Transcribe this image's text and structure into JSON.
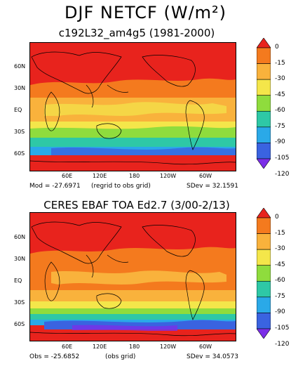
{
  "title": "DJF NETCF (W/m²)",
  "panels": [
    {
      "subtitle": "c192L32_am4g5 (1981-2000)",
      "stat_left": "Mod = -27.6971",
      "stat_mid": "(regrid to obs grid)",
      "stat_right": "SDev = 32.1591"
    },
    {
      "subtitle": "CERES EBAF TOA Ed2.7 (3/00-2/13)",
      "stat_left": "Obs = -25.6852",
      "stat_mid": "(obs grid)",
      "stat_right": "SDev = 34.0573"
    }
  ],
  "lat_labels": [
    "60N",
    "30N",
    "EQ",
    "30S",
    "60S"
  ],
  "lon_labels": [
    "60E",
    "120E",
    "180",
    "120W",
    "60W"
  ],
  "colorbar": {
    "labels": [
      "0",
      "-15",
      "-30",
      "-45",
      "-60",
      "-75",
      "-90",
      "-105",
      "-120"
    ],
    "colors": [
      "#e8231d",
      "#f47a1e",
      "#f9b23c",
      "#f4e64a",
      "#8fdc3d",
      "#2ec8a6",
      "#2aa9e8",
      "#3a63e0",
      "#7b2ee8"
    ]
  }
}
